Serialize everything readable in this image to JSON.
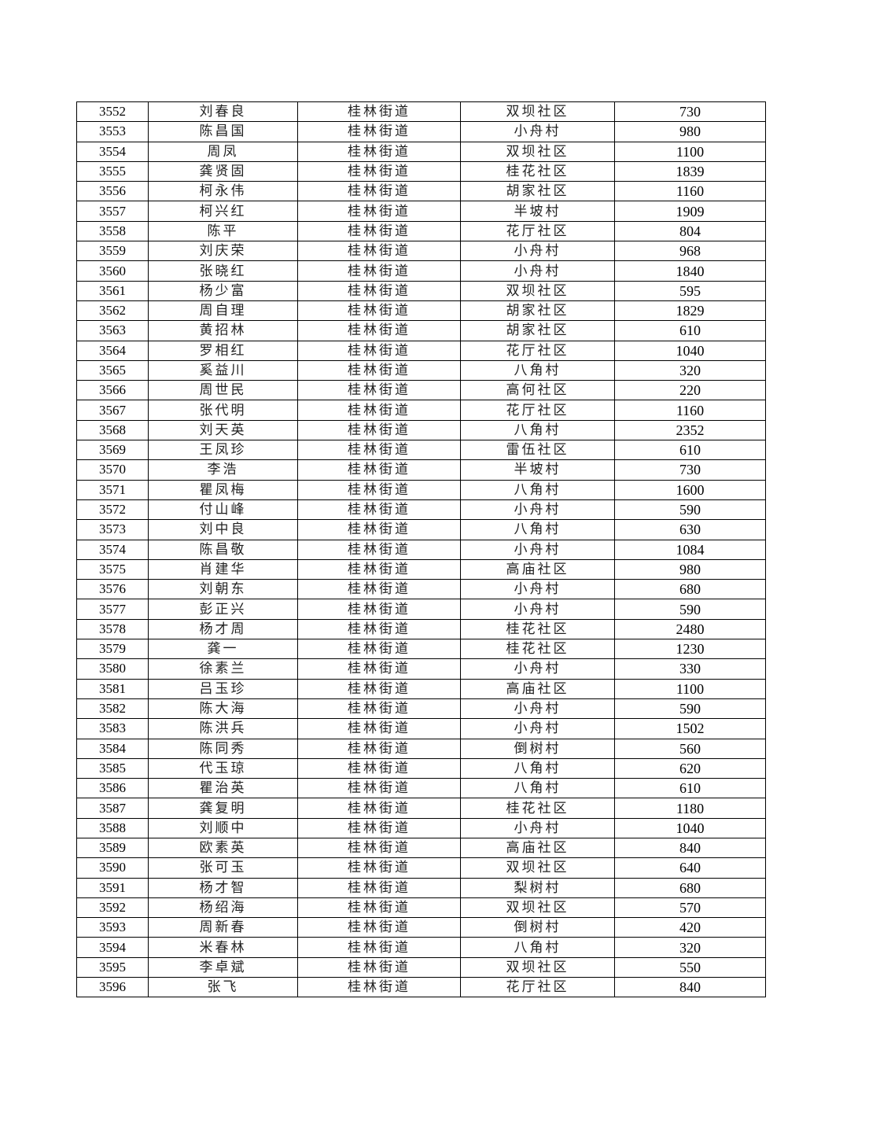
{
  "table": {
    "rows": [
      [
        "3552",
        "刘春良",
        "桂林街道",
        "双坝社区",
        "730"
      ],
      [
        "3553",
        "陈昌国",
        "桂林街道",
        "小舟村",
        "980"
      ],
      [
        "3554",
        "周凤",
        "桂林街道",
        "双坝社区",
        "1100"
      ],
      [
        "3555",
        "龚贤固",
        "桂林街道",
        "桂花社区",
        "1839"
      ],
      [
        "3556",
        "柯永伟",
        "桂林街道",
        "胡家社区",
        "1160"
      ],
      [
        "3557",
        "柯兴红",
        "桂林街道",
        "半坡村",
        "1909"
      ],
      [
        "3558",
        "陈平",
        "桂林街道",
        "花厅社区",
        "804"
      ],
      [
        "3559",
        "刘庆荣",
        "桂林街道",
        "小舟村",
        "968"
      ],
      [
        "3560",
        "张晓红",
        "桂林街道",
        "小舟村",
        "1840"
      ],
      [
        "3561",
        "杨少富",
        "桂林街道",
        "双坝社区",
        "595"
      ],
      [
        "3562",
        "周自理",
        "桂林街道",
        "胡家社区",
        "1829"
      ],
      [
        "3563",
        "黄招林",
        "桂林街道",
        "胡家社区",
        "610"
      ],
      [
        "3564",
        "罗相红",
        "桂林街道",
        "花厅社区",
        "1040"
      ],
      [
        "3565",
        "奚益川",
        "桂林街道",
        "八角村",
        "320"
      ],
      [
        "3566",
        "周世民",
        "桂林街道",
        "高何社区",
        "220"
      ],
      [
        "3567",
        "张代明",
        "桂林街道",
        "花厅社区",
        "1160"
      ],
      [
        "3568",
        "刘天英",
        "桂林街道",
        "八角村",
        "2352"
      ],
      [
        "3569",
        "王凤珍",
        "桂林街道",
        "雷伍社区",
        "610"
      ],
      [
        "3570",
        "李浩",
        "桂林街道",
        "半坡村",
        "730"
      ],
      [
        "3571",
        "瞿凤梅",
        "桂林街道",
        "八角村",
        "1600"
      ],
      [
        "3572",
        "付山峰",
        "桂林街道",
        "小舟村",
        "590"
      ],
      [
        "3573",
        "刘中良",
        "桂林街道",
        "八角村",
        "630"
      ],
      [
        "3574",
        "陈昌敬",
        "桂林街道",
        "小舟村",
        "1084"
      ],
      [
        "3575",
        "肖建华",
        "桂林街道",
        "高庙社区",
        "980"
      ],
      [
        "3576",
        "刘朝东",
        "桂林街道",
        "小舟村",
        "680"
      ],
      [
        "3577",
        "彭正兴",
        "桂林街道",
        "小舟村",
        "590"
      ],
      [
        "3578",
        "杨才周",
        "桂林街道",
        "桂花社区",
        "2480"
      ],
      [
        "3579",
        "龚一",
        "桂林街道",
        "桂花社区",
        "1230"
      ],
      [
        "3580",
        "徐素兰",
        "桂林街道",
        "小舟村",
        "330"
      ],
      [
        "3581",
        "吕玉珍",
        "桂林街道",
        "高庙社区",
        "1100"
      ],
      [
        "3582",
        "陈大海",
        "桂林街道",
        "小舟村",
        "590"
      ],
      [
        "3583",
        "陈洪兵",
        "桂林街道",
        "小舟村",
        "1502"
      ],
      [
        "3584",
        "陈同秀",
        "桂林街道",
        "倒树村",
        "560"
      ],
      [
        "3585",
        "代玉琼",
        "桂林街道",
        "八角村",
        "620"
      ],
      [
        "3586",
        "瞿治英",
        "桂林街道",
        "八角村",
        "610"
      ],
      [
        "3587",
        "龚复明",
        "桂林街道",
        "桂花社区",
        "1180"
      ],
      [
        "3588",
        "刘顺中",
        "桂林街道",
        "小舟村",
        "1040"
      ],
      [
        "3589",
        "欧素英",
        "桂林街道",
        "高庙社区",
        "840"
      ],
      [
        "3590",
        "张可玉",
        "桂林街道",
        "双坝社区",
        "640"
      ],
      [
        "3591",
        "杨才智",
        "桂林街道",
        "梨树村",
        "680"
      ],
      [
        "3592",
        "杨绍海",
        "桂林街道",
        "双坝社区",
        "570"
      ],
      [
        "3593",
        "周新春",
        "桂林街道",
        "倒树村",
        "420"
      ],
      [
        "3594",
        "米春林",
        "桂林街道",
        "八角村",
        "320"
      ],
      [
        "3595",
        "李卓斌",
        "桂林街道",
        "双坝社区",
        "550"
      ],
      [
        "3596",
        "张飞",
        "桂林街道",
        "花厅社区",
        "840"
      ]
    ]
  }
}
